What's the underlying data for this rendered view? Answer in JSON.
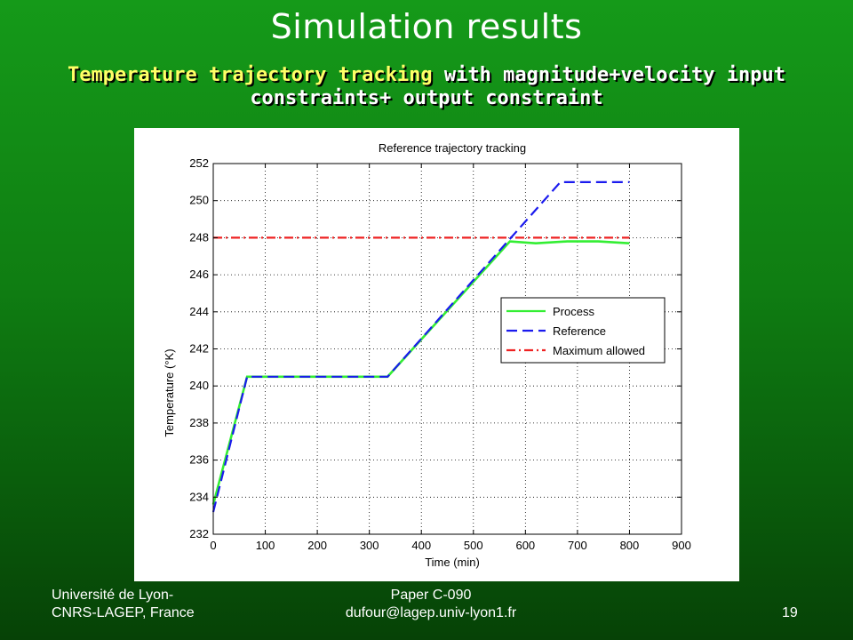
{
  "slide": {
    "title": "Simulation results",
    "subtitle_highlight": "Temperature trajectory tracking",
    "subtitle_line1_rest": " with magnitude+velocity input",
    "subtitle_line2": "constraints+ output constraint"
  },
  "footer": {
    "left_line1": "Université de Lyon-",
    "left_line2": "CNRS-LAGEP, France",
    "center_line1": "Paper C-090",
    "center_line2": "dufour@lagep.univ-lyon1.fr",
    "page_number": "19"
  },
  "colors": {
    "process": "#33ee33",
    "reference": "#1a1aee",
    "maximum": "#ee2222"
  },
  "chart_data": {
    "type": "line",
    "title": "Reference trajectory tracking",
    "xlabel": "Time (min)",
    "ylabel": "Temperature (°K)",
    "xlim": [
      0,
      900
    ],
    "ylim": [
      232,
      252
    ],
    "xticks": [
      0,
      100,
      200,
      300,
      400,
      500,
      600,
      700,
      800,
      900
    ],
    "yticks": [
      232,
      234,
      236,
      238,
      240,
      242,
      244,
      246,
      248,
      250,
      252
    ],
    "grid": true,
    "legend_position": "center-right",
    "series": [
      {
        "name": "Process",
        "style": "solid",
        "x": [
          0,
          65,
          335,
          570,
          620,
          680,
          740,
          800
        ],
        "y": [
          233.6,
          240.5,
          240.5,
          247.8,
          247.7,
          247.8,
          247.8,
          247.7
        ]
      },
      {
        "name": "Reference",
        "style": "dashed",
        "x": [
          0,
          65,
          335,
          667,
          800
        ],
        "y": [
          233.2,
          240.5,
          240.5,
          251,
          251
        ]
      },
      {
        "name": "Maximum allowed",
        "style": "dashdot",
        "x": [
          0,
          800
        ],
        "y": [
          248,
          248
        ]
      }
    ]
  }
}
